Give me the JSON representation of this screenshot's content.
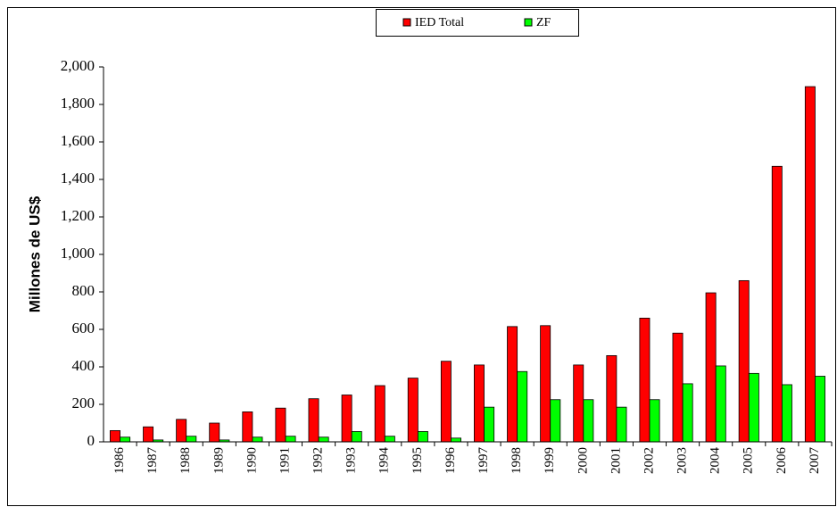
{
  "chart_data": {
    "type": "bar",
    "y_label": "Millones de US$",
    "categories": [
      "1986",
      "1987",
      "1988",
      "1989",
      "1990",
      "1991",
      "1992",
      "1993",
      "1994",
      "1995",
      "1996",
      "1997",
      "1998",
      "1999",
      "2000",
      "2001",
      "2002",
      "2003",
      "2004",
      "2005",
      "2006",
      "2007"
    ],
    "series": [
      {
        "name": "IED Total",
        "color": "#ff0000",
        "values": [
          60,
          80,
          120,
          100,
          160,
          180,
          230,
          250,
          300,
          340,
          430,
          410,
          615,
          620,
          410,
          460,
          660,
          580,
          795,
          860,
          1470,
          1895
        ]
      },
      {
        "name": "ZF",
        "color": "#00ff00",
        "values": [
          25,
          10,
          30,
          10,
          25,
          30,
          25,
          55,
          30,
          55,
          20,
          185,
          375,
          225,
          225,
          185,
          225,
          310,
          405,
          365,
          305,
          350
        ]
      }
    ],
    "ylim": [
      0,
      2000
    ],
    "yticks": [
      0,
      200,
      400,
      600,
      800,
      {
        "value": 1000,
        "label": "1,000"
      },
      {
        "value": 1200,
        "label": "1,200"
      },
      {
        "value": 1400,
        "label": "1,400"
      },
      {
        "value": 1600,
        "label": "1,600"
      },
      {
        "value": 1800,
        "label": "1,800"
      },
      {
        "value": 2000,
        "label": "2,000"
      }
    ],
    "legend": "top"
  }
}
